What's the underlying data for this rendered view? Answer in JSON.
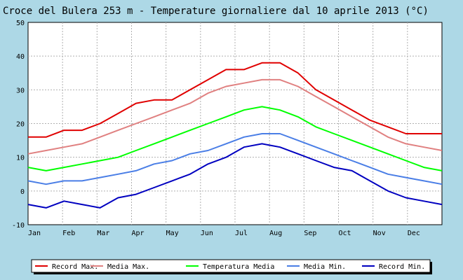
{
  "chart_data": {
    "type": "line",
    "title": "Croce del Bulera 253 m - Temperature giornaliere dal 10 aprile 2013 (°C)",
    "xlabel": "",
    "ylabel": "",
    "ylim": [
      -10,
      50
    ],
    "yticks": [
      "50",
      "40",
      "30",
      "20",
      "10",
      "0",
      "-10"
    ],
    "x_ticks": [
      "Jan",
      "Feb",
      "Mar",
      "Apr",
      "May",
      "Jun",
      "Jul",
      "Aug",
      "Sep",
      "Oct",
      "Nov",
      "Dec"
    ],
    "grid": true,
    "legend_position": "bottom",
    "series": [
      {
        "name": "Record Max.",
        "color": "#e00000",
        "values": [
          16,
          16,
          18,
          18,
          20,
          23,
          26,
          27,
          27,
          30,
          33,
          36,
          36,
          38,
          38,
          35,
          30,
          27,
          24,
          21,
          19,
          17,
          17,
          17
        ]
      },
      {
        "name": "Media Max.",
        "color": "#e08080",
        "values": [
          11,
          12,
          13,
          14,
          16,
          18,
          20,
          22,
          24,
          26,
          29,
          31,
          32,
          33,
          33,
          31,
          28,
          25,
          22,
          19,
          16,
          14,
          13,
          12
        ]
      },
      {
        "name": "Temperatura Media",
        "color": "#00ff00",
        "values": [
          7,
          6,
          7,
          8,
          9,
          10,
          12,
          14,
          16,
          18,
          20,
          22,
          24,
          25,
          24,
          22,
          19,
          17,
          15,
          13,
          11,
          9,
          7,
          6
        ]
      },
      {
        "name": "Media Min.",
        "color": "#4a7ee6",
        "values": [
          3,
          2,
          3,
          3,
          4,
          5,
          6,
          8,
          9,
          11,
          12,
          14,
          16,
          17,
          17,
          15,
          13,
          11,
          9,
          7,
          5,
          4,
          3,
          2
        ]
      },
      {
        "name": "Record Min.",
        "color": "#0000c0",
        "values": [
          -4,
          -5,
          -3,
          -4,
          -5,
          -2,
          -1,
          1,
          3,
          5,
          8,
          10,
          13,
          14,
          13,
          11,
          9,
          7,
          6,
          3,
          0,
          -2,
          -3,
          -4
        ]
      }
    ]
  }
}
